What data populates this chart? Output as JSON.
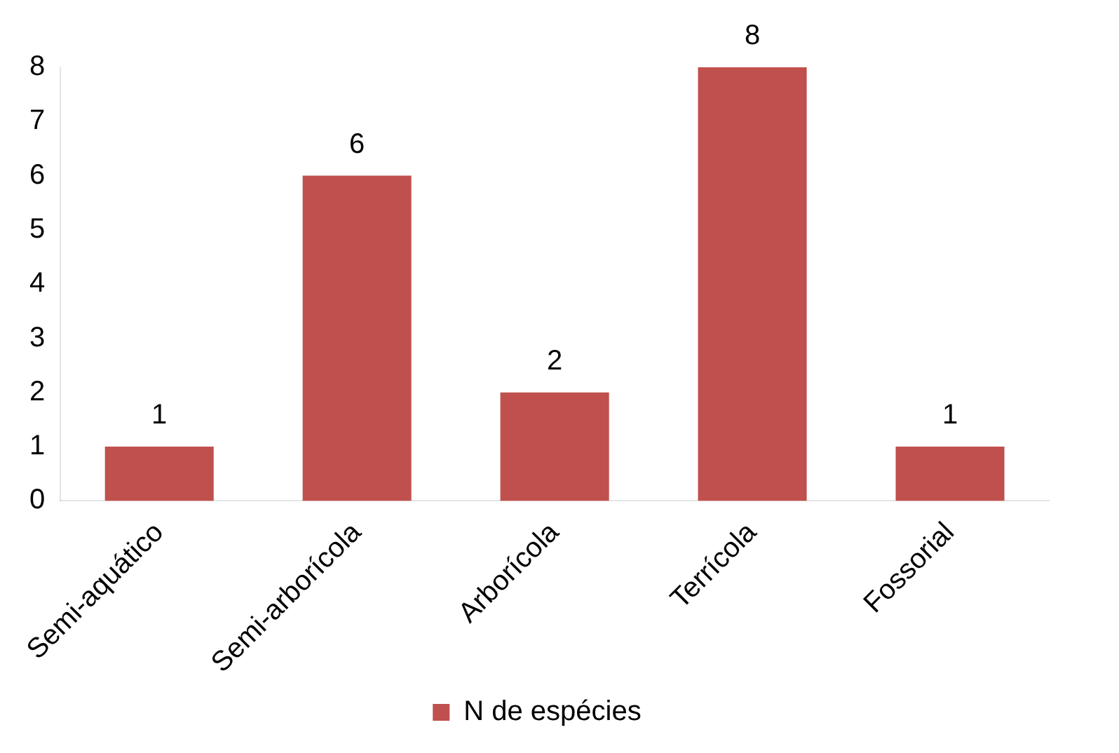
{
  "chart_data": {
    "type": "bar",
    "categories": [
      "Semi-aquático",
      "Semi-arborícola",
      "Arborícola",
      "Terrícola",
      "Fossorial"
    ],
    "series": [
      {
        "name": "N de espécies",
        "color": "#c0504d",
        "values": [
          1,
          6,
          2,
          8,
          1
        ]
      }
    ],
    "ylim": [
      0,
      8
    ],
    "yticks": [
      0,
      1,
      2,
      3,
      4,
      5,
      6,
      7,
      8
    ],
    "grid": false,
    "legend": "bottom",
    "data_labels": true
  }
}
